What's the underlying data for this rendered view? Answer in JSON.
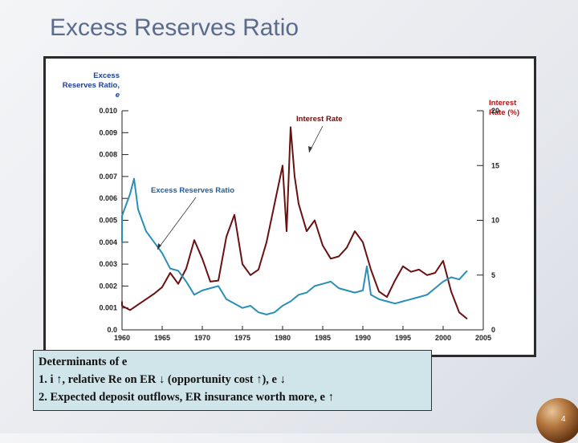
{
  "slide": {
    "title": "Excess Reserves Ratio",
    "page_number": "4"
  },
  "determinants": {
    "line0": "Determinants of e",
    "line1": "1.  i ↑, relative Re on ER ↓ (opportunity cost ↑), e ↓",
    "line2": "2.  Expected deposit outflows, ER insurance worth more, e ↑"
  },
  "chart_data": {
    "type": "line",
    "left_axis": {
      "title_lines": [
        "Excess",
        "Reserves Ratio,",
        "e"
      ],
      "range": [
        0,
        0.01
      ],
      "ticks": [
        "0.0",
        "0.001",
        "0.002",
        "0.003",
        "0.004",
        "0.005",
        "0.006",
        "0.007",
        "0.008",
        "0.009",
        "0.010"
      ]
    },
    "right_axis": {
      "title_lines": [
        "Interest",
        "Rate (%)"
      ],
      "range": [
        0,
        20
      ],
      "ticks": [
        "0",
        "5",
        "10",
        "15",
        "20"
      ]
    },
    "x_axis": {
      "range": [
        1960,
        2005
      ],
      "ticks": [
        "1960",
        "1965",
        "1970",
        "1975",
        "1980",
        "1985",
        "1990",
        "1995",
        "2000",
        "2005"
      ]
    },
    "annotations": {
      "interest_rate_label": "Interest Rate",
      "excess_reserves_label": "Excess Reserves Ratio"
    },
    "colors": {
      "interest_rate": "#6b1010",
      "excess_reserves": "#2a8fb8",
      "axis_title": "#b01818"
    },
    "series": [
      {
        "name": "Interest Rate",
        "axis": "right",
        "x": [
          1959,
          1960,
          1961,
          1962,
          1963,
          1964,
          1965,
          1966,
          1967,
          1968,
          1969,
          1970,
          1971,
          1972,
          1973,
          1974,
          1975,
          1976,
          1977,
          1978,
          1979,
          1980,
          1980.5,
          1981,
          1981.5,
          1982,
          1983,
          1984,
          1985,
          1986,
          1987,
          1988,
          1989,
          1990,
          1991,
          1992,
          1993,
          1994,
          1995,
          1996,
          1997,
          1998,
          1999,
          2000,
          2001,
          2002,
          2003
        ],
        "y": [
          2.6,
          2.2,
          1.8,
          2.3,
          2.8,
          3.3,
          3.9,
          5.2,
          4.2,
          5.6,
          8.2,
          6.5,
          4.4,
          4.5,
          8.5,
          10.5,
          6.0,
          5.0,
          5.5,
          8.0,
          11.5,
          15.0,
          9.0,
          18.5,
          14.0,
          11.5,
          9.0,
          10.0,
          7.7,
          6.5,
          6.7,
          7.5,
          9.0,
          8.0,
          5.5,
          3.5,
          3.0,
          4.5,
          5.8,
          5.3,
          5.5,
          5.0,
          5.2,
          6.3,
          3.5,
          1.6,
          1.0
        ]
      },
      {
        "name": "Excess Reserves Ratio",
        "axis": "left",
        "x": [
          1959,
          1960,
          1961,
          1961.5,
          1962,
          1963,
          1964,
          1965,
          1966,
          1967,
          1968,
          1969,
          1970,
          1971,
          1972,
          1973,
          1974,
          1975,
          1976,
          1977,
          1978,
          1979,
          1980,
          1981,
          1982,
          1983,
          1984,
          1985,
          1986,
          1987,
          1988,
          1989,
          1990,
          1990.5,
          1991,
          1992,
          1993,
          1994,
          1995,
          1996,
          1997,
          1998,
          1999,
          2000,
          2001,
          2002,
          2003
        ],
        "y": [
          0.004,
          0.0052,
          0.0062,
          0.0069,
          0.0055,
          0.0045,
          0.004,
          0.0035,
          0.0028,
          0.0027,
          0.0022,
          0.0016,
          0.0018,
          0.0019,
          0.002,
          0.0014,
          0.0012,
          0.001,
          0.0011,
          0.0008,
          0.0007,
          0.0008,
          0.0011,
          0.0013,
          0.0016,
          0.0017,
          0.002,
          0.0021,
          0.0022,
          0.0019,
          0.0018,
          0.0017,
          0.0018,
          0.0029,
          0.0016,
          0.0014,
          0.0013,
          0.0012,
          0.0013,
          0.0014,
          0.0015,
          0.0016,
          0.0019,
          0.0022,
          0.0024,
          0.0023,
          0.0027
        ]
      }
    ]
  }
}
